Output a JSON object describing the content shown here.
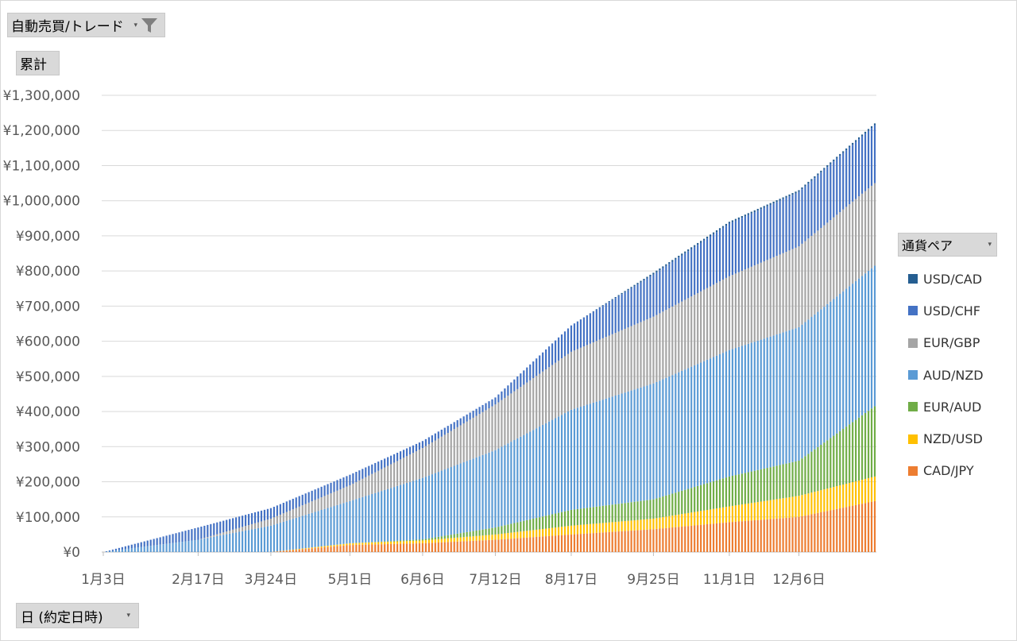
{
  "filter_field": {
    "label": "自動売買/トレード",
    "dropdown_glyph": "▾",
    "icon": "funnel-filter-icon"
  },
  "values_field": {
    "label": "累計"
  },
  "axis_field": {
    "label": "日 (約定日時)",
    "dropdown_glyph": "▾"
  },
  "legend": {
    "title": "通貨ペア",
    "dropdown_glyph": "▾",
    "items": [
      {
        "label": "USD/CAD",
        "color": "#255e91"
      },
      {
        "label": "USD/CHF",
        "color": "#4472c4"
      },
      {
        "label": "EUR/GBP",
        "color": "#a5a5a5"
      },
      {
        "label": "AUD/NZD",
        "color": "#5b9bd5"
      },
      {
        "label": "EUR/AUD",
        "color": "#70ad47"
      },
      {
        "label": "NZD/USD",
        "color": "#ffc000"
      },
      {
        "label": "CAD/JPY",
        "color": "#ed7d31"
      }
    ]
  },
  "chart_data": {
    "type": "bar",
    "stacked": true,
    "grid": true,
    "legend_position": "right",
    "ylim": [
      0,
      1300000
    ],
    "y_ticks": [
      "¥0",
      "¥100,000",
      "¥200,000",
      "¥300,000",
      "¥400,000",
      "¥500,000",
      "¥600,000",
      "¥700,000",
      "¥800,000",
      "¥900,000",
      "¥1,000,000",
      "¥1,100,000",
      "¥1,200,000",
      "¥1,300,000"
    ],
    "x_tick_labels": [
      "1月3日",
      "2月17日",
      "3月24日",
      "5月1日",
      "6月6日",
      "7月12日",
      "8月17日",
      "9月25日",
      "11月1日",
      "12月6日"
    ],
    "x_tick_index": [
      0,
      30,
      53,
      78,
      101,
      124,
      148,
      174,
      198,
      220
    ],
    "num_bars": 245,
    "series_order_bottom_to_top": [
      "CAD/JPY",
      "NZD/USD",
      "EUR/AUD",
      "AUD/NZD",
      "EUR/GBP",
      "USD/CHF",
      "USD/CAD"
    ],
    "key_points_index": [
      0,
      30,
      53,
      78,
      101,
      124,
      148,
      174,
      198,
      220,
      244
    ],
    "series": [
      {
        "name": "CAD/JPY",
        "values": [
          0,
          0,
          0,
          20000,
          25000,
          35000,
          50000,
          65000,
          85000,
          100000,
          145000
        ]
      },
      {
        "name": "NZD/USD",
        "values": [
          0,
          0,
          0,
          5000,
          8000,
          15000,
          25000,
          30000,
          45000,
          60000,
          70000
        ]
      },
      {
        "name": "EUR/AUD",
        "values": [
          0,
          0,
          0,
          0,
          3000,
          20000,
          45000,
          55000,
          85000,
          100000,
          200000
        ]
      },
      {
        "name": "AUD/NZD",
        "values": [
          0,
          35000,
          75000,
          120000,
          175000,
          220000,
          285000,
          330000,
          360000,
          380000,
          400000
        ]
      },
      {
        "name": "EUR/GBP",
        "values": [
          0,
          0,
          20000,
          45000,
          85000,
          130000,
          165000,
          190000,
          210000,
          230000,
          235000
        ]
      },
      {
        "name": "USD/CHF",
        "values": [
          0,
          35000,
          30000,
          30000,
          20000,
          20000,
          75000,
          120000,
          150000,
          155000,
          165000
        ]
      },
      {
        "name": "USD/CAD",
        "values": [
          0,
          0,
          0,
          0,
          0,
          0,
          0,
          5000,
          5000,
          5000,
          5000
        ]
      }
    ]
  }
}
